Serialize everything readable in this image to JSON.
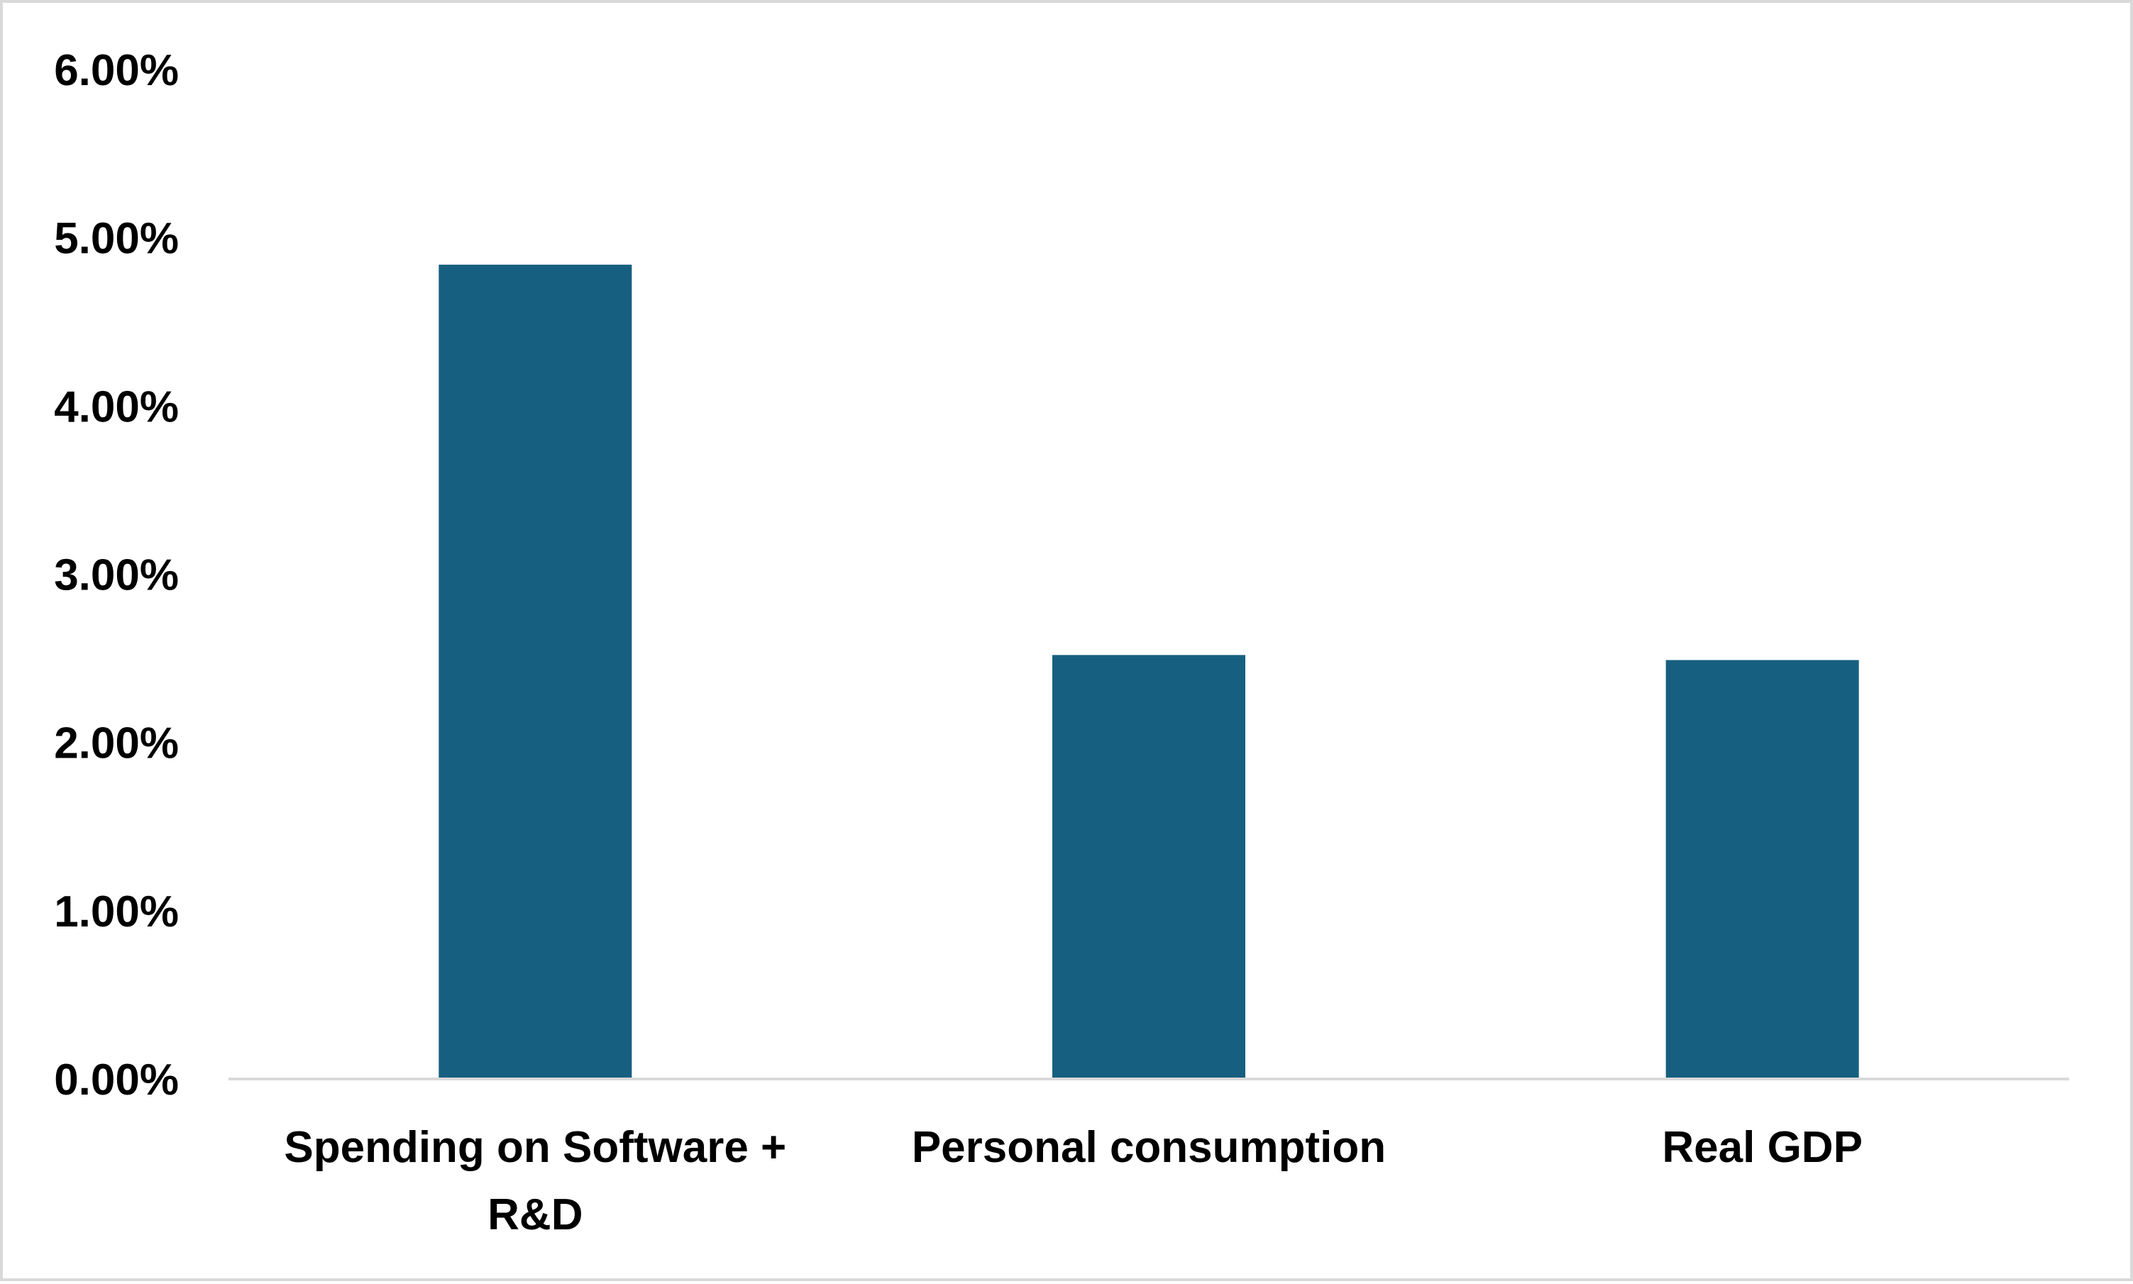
{
  "chart_data": {
    "type": "bar",
    "title": "",
    "xlabel": "",
    "ylabel": "",
    "categories": [
      [
        "Spending on Software +",
        "R&D"
      ],
      [
        "Personal consumption"
      ],
      [
        "Real GDP"
      ]
    ],
    "values": [
      4.84,
      2.52,
      2.49
    ],
    "ylim": [
      0,
      6
    ],
    "yticks": [
      "0.00%",
      "1.00%",
      "2.00%",
      "3.00%",
      "4.00%",
      "5.00%",
      "6.00%"
    ],
    "grid": false,
    "legend": "none",
    "colors": {
      "bar": "#175f80",
      "axis": "#d9d9d9",
      "frame": "#d9d9d9",
      "text": "#000000"
    }
  }
}
